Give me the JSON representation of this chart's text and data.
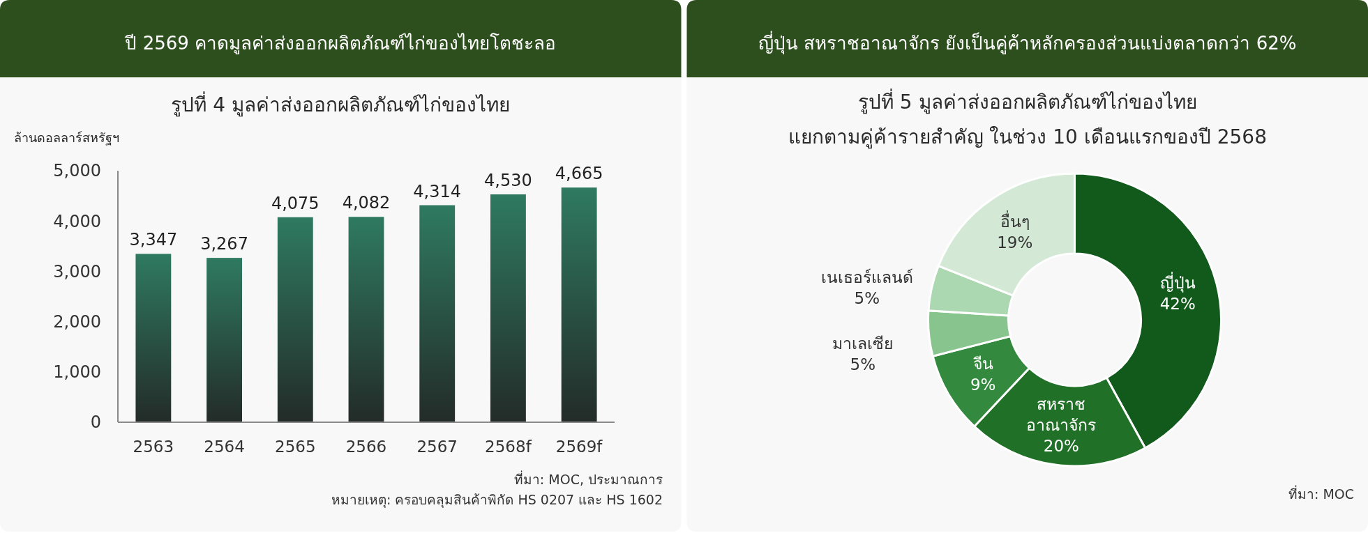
{
  "chart_data": [
    {
      "type": "bar",
      "title": "ปี 2569 คาดมูลค่าส่งออกผลิตภัณฑ์ไก่ของไทยโตชะลอ",
      "subtitle": "รูปที่ 4 มูลค่าส่งออกผลิตภัณฑ์ไก่ของไทย",
      "ylabel": "ล้านดอลลาร์สหรัฐฯ",
      "categories": [
        "2563",
        "2564",
        "2565",
        "2566",
        "2567",
        "2568f",
        "2569f"
      ],
      "values": [
        3347,
        3267,
        4075,
        4082,
        4314,
        4530,
        4665
      ],
      "value_labels": [
        "3,347",
        "3,267",
        "4,075",
        "4,082",
        "4,314",
        "4,530",
        "4,665"
      ],
      "color": "#2f7a61",
      "ylim": [
        0,
        5000
      ],
      "yticks": [
        0,
        {
          "value": 1000,
          "label": "1,000"
        },
        {
          "value": 2000,
          "label": "2,000"
        },
        {
          "value": 3000,
          "label": "3,000"
        },
        {
          "value": 4000,
          "label": "4,000"
        },
        {
          "value": 5000,
          "label": "5,000"
        }
      ],
      "annotations": [
        "ที่มา: MOC, ประมาณการ",
        "หมายเหตุ: ครอบคลุมสินค้าพิกัด HS 0207 และ HS 1602"
      ]
    },
    {
      "type": "donut",
      "title": "ญี่ปุ่น สหราชอาณาจักร ยังเป็นคู่ค้าหลักครองส่วนแบ่งตลาดกว่า 62%",
      "subtitle": "รูปที่ 5 มูลค่าส่งออกผลิตภัณฑ์ไก่ของไทย\nแยกตามคู่ค้ารายสำคัญ ในช่วง 10 เดือนแรกของปี 2568",
      "categories": [
        "ญี่ปุ่น",
        "สหราช\nอาณาจักร",
        "จีน",
        "มาเลเซีย",
        "เนเธอร์แลนด์",
        "อื่นๆ"
      ],
      "values": [
        42,
        20,
        9,
        5,
        5,
        19
      ],
      "value_labels": [
        "42%",
        "20%",
        "9%",
        "5%",
        "5%",
        "19%"
      ],
      "colors": [
        "#115a1b",
        "#217027",
        "#338a3e",
        "#88c48e",
        "#abd8b1",
        "#d3e9d5"
      ],
      "annotations": [
        "ที่มา: MOC"
      ]
    }
  ]
}
